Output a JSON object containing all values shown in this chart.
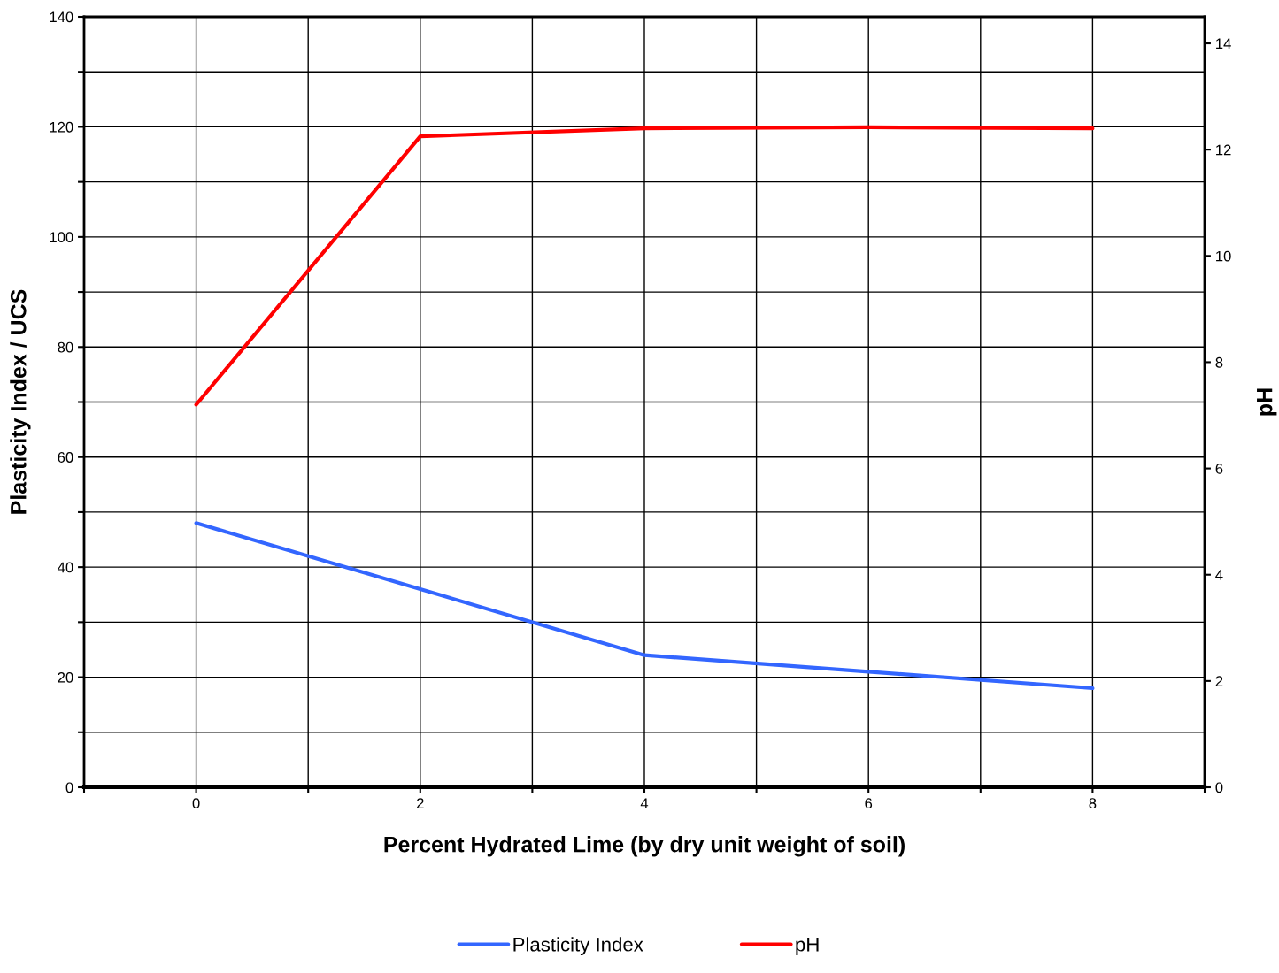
{
  "chart_data": {
    "type": "line",
    "xlabel": "Percent Hydrated Lime (by dry unit weight of soil)",
    "ylabel": "Plasticity Index / UCS",
    "y2label": "pH",
    "x": [
      0,
      2,
      4,
      6,
      8
    ],
    "series": [
      {
        "name": "Plasticity Index",
        "color": "#3366ff",
        "values": [
          48,
          36,
          24,
          21,
          18
        ]
      },
      {
        "name": "pH",
        "color": "#ff0000",
        "axis": "y2",
        "values": [
          7.2,
          12.25,
          12.4,
          12.42,
          12.4
        ]
      }
    ],
    "xlim": [
      -1,
      9
    ],
    "xticks": [
      {
        "value": -1,
        "label": null
      },
      0,
      {
        "value": 1,
        "label": null
      },
      2,
      {
        "value": 3,
        "label": null
      },
      4,
      {
        "value": 5,
        "label": null
      },
      6,
      {
        "value": 7,
        "label": null
      },
      8,
      {
        "value": 9,
        "label": null
      }
    ],
    "ylim": [
      0,
      140
    ],
    "yticks": [
      0,
      {
        "value": 10,
        "label": null
      },
      20,
      {
        "value": 30,
        "label": null
      },
      40,
      {
        "value": 50,
        "label": null
      },
      60,
      {
        "value": 70,
        "label": null
      },
      80,
      {
        "value": 90,
        "label": null
      },
      100,
      {
        "value": 110,
        "label": null
      },
      120,
      {
        "value": 130,
        "label": null
      },
      140
    ],
    "y2lim": [
      0,
      14.5
    ],
    "y2ticks": [
      0,
      2,
      4,
      6,
      8,
      10,
      12,
      14
    ],
    "grid": true,
    "legend": "bottom",
    "marker": "none",
    "line_style": "solid"
  }
}
